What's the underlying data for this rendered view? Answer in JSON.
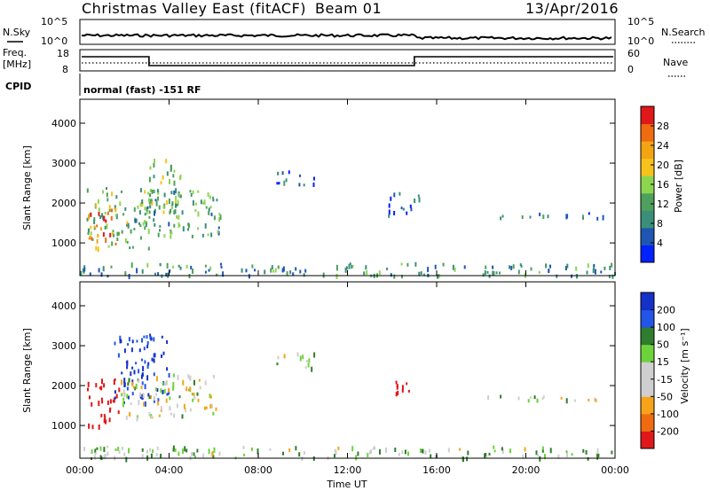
{
  "header": {
    "title": "Christmas Valley East (fitACF)",
    "beam": "Beam 01",
    "date": "13/Apr/2016"
  },
  "top_panels": {
    "nsky_label": "N.Sky",
    "nsky_ticks": [
      "10^5",
      "10^0"
    ],
    "nsearch_label": "N.Search",
    "nsearch_ticks": [
      "10^5",
      "10^0"
    ],
    "freq_label_1": "Freq.",
    "freq_label_2": "[MHz]",
    "freq_ticks": [
      "18",
      "8"
    ],
    "nave_label": "Nave",
    "nave_ticks": [
      "60",
      "0"
    ],
    "cpid_label": "CPID",
    "cpid_text": "normal (fast) -151 RF"
  },
  "colors": {
    "power_scale": [
      "#0022ff",
      "#1f56b3",
      "#3b8f78",
      "#4fa05c",
      "#8cd64f",
      "#f6c21c",
      "#f2a413",
      "#ef6b10",
      "#e0181a"
    ],
    "velocity_scale": [
      "#1431c8",
      "#2255e8",
      "#2f7d2e",
      "#6dd33b",
      "#cfcfcf",
      "#cfcfcf",
      "#f6a319",
      "#ef6b10",
      "#e0181a"
    ]
  },
  "chart_data": [
    {
      "type": "heatmap",
      "name": "power",
      "ylabel": "Slant Range [km]",
      "yticks": [
        "1000",
        "2000",
        "3000",
        "4000"
      ],
      "ylim": [
        180,
        4600
      ],
      "xlim": [
        0,
        24
      ],
      "colorbar_label": "Power [dB]",
      "colorbar_ticks": [
        "4",
        "8",
        "12",
        "16",
        "20",
        "24",
        "28"
      ],
      "colorbar_range": [
        0,
        32
      ],
      "regions": [
        {
          "t0": 0.3,
          "t1": 3.2,
          "r0": 900,
          "r1": 2400,
          "level": 14
        },
        {
          "t0": 0.3,
          "t1": 1.6,
          "r0": 1000,
          "r1": 1900,
          "level": 26
        },
        {
          "t0": 2.4,
          "t1": 6.3,
          "r0": 1200,
          "r1": 2400,
          "level": 12
        },
        {
          "t0": 3.0,
          "t1": 4.5,
          "r0": 1800,
          "r1": 3200,
          "level": 14
        },
        {
          "t0": 8.8,
          "t1": 10.5,
          "r0": 2450,
          "r1": 2850,
          "level": 6
        },
        {
          "t0": 13.8,
          "t1": 15.2,
          "r0": 1700,
          "r1": 2300,
          "level": 6
        },
        {
          "t0": 18.5,
          "t1": 23.5,
          "r0": 1650,
          "r1": 1800,
          "level": 8
        },
        {
          "t0": 0.0,
          "t1": 24.0,
          "r0": 200,
          "r1": 520,
          "level": 10
        }
      ]
    },
    {
      "type": "heatmap",
      "name": "velocity",
      "ylabel": "Slant Range [km]",
      "yticks": [
        "1000",
        "2000",
        "3000",
        "4000"
      ],
      "ylim": [
        180,
        4600
      ],
      "xlim": [
        0,
        24
      ],
      "xticks": [
        "00:00",
        "04:00",
        "08:00",
        "12:00",
        "16:00",
        "20:00",
        "00:00"
      ],
      "xlabel": "Time UT",
      "colorbar_label": "Velocity [m s⁻¹]",
      "colorbar_ticks": [
        "200",
        "100",
        "50",
        "15",
        "-15",
        "-50",
        "-100",
        "-200"
      ],
      "regions": [
        {
          "t0": 0.3,
          "t1": 1.8,
          "r0": 1000,
          "r1": 2200,
          "vel": -150
        },
        {
          "t0": 1.5,
          "t1": 4.0,
          "r0": 1600,
          "r1": 3300,
          "vel": 150
        },
        {
          "t0": 1.8,
          "t1": 6.3,
          "r0": 1200,
          "r1": 2300,
          "vel": 0
        },
        {
          "t0": 8.8,
          "t1": 10.5,
          "r0": 2450,
          "r1": 2850,
          "vel": 0
        },
        {
          "t0": 13.8,
          "t1": 15.0,
          "r0": 1800,
          "r1": 2200,
          "vel": -150
        },
        {
          "t0": 17.0,
          "t1": 23.5,
          "r0": 1650,
          "r1": 1780,
          "vel": 0
        },
        {
          "t0": 0.0,
          "t1": 24.0,
          "r0": 200,
          "r1": 500,
          "vel": 20
        }
      ]
    }
  ]
}
